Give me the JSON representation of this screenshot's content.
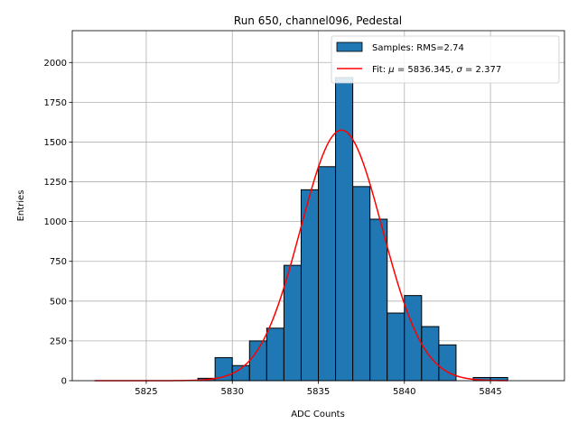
{
  "chart_data": {
    "type": "bar",
    "title": "Run 650, channel096, Pedestal",
    "xlabel": "ADC Counts",
    "ylabel": "Entries",
    "xlim": [
      5820.7,
      5849.3
    ],
    "ylim": [
      0,
      2200
    ],
    "xticks": [
      5825,
      5830,
      5835,
      5840,
      5845
    ],
    "xtick_labels": [
      "5825",
      "5830",
      "5835",
      "5840",
      "5845"
    ],
    "yticks": [
      0,
      250,
      500,
      750,
      1000,
      1250,
      1500,
      1750,
      2000
    ],
    "ytick_labels": [
      "0",
      "250",
      "500",
      "750",
      "1000",
      "1250",
      "1500",
      "1750",
      "2000"
    ],
    "grid": true,
    "legend_position": "top-right",
    "series": [
      {
        "name": "Samples: RMS=2.74",
        "kind": "histogram",
        "color": "#1f77b4",
        "edge_color": "#000000",
        "bin_edges": [
          5828.0,
          5829.0,
          5830.0,
          5831.0,
          5832.0,
          5833.0,
          5834.0,
          5835.0,
          5836.0,
          5837.0,
          5838.0,
          5839.0,
          5840.0,
          5841.0,
          5842.0,
          5843.0,
          5844.0,
          5845.0,
          5846.0
        ],
        "values": [
          15,
          145,
          95,
          250,
          330,
          725,
          1200,
          1345,
          1905,
          1220,
          1015,
          425,
          535,
          340,
          225,
          0,
          20,
          20
        ]
      },
      {
        "name": "Fit: μ = 5836.345, σ = 2.377",
        "name_parts": {
          "prefix": "Fit: ",
          "mu": "μ",
          "mu_text": " = 5836.345, ",
          "sigma": "σ",
          "sigma_text": " = 2.377"
        },
        "kind": "gaussian",
        "color": "#ff0000",
        "amplitude": 1575,
        "mu": 5836.345,
        "sigma": 2.377,
        "x_range": [
          5822.0,
          5846.0
        ]
      }
    ]
  }
}
